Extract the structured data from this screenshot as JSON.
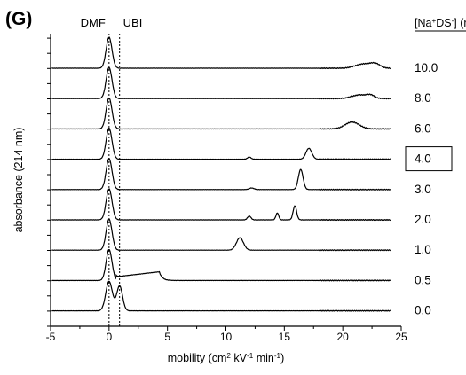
{
  "panel_label": "(G)",
  "chart_data": {
    "type": "line",
    "title": "",
    "xlabel": "mobility (cm² kV⁻¹ min⁻¹)",
    "xlabel_parts": [
      "mobility (cm",
      "2",
      " kV",
      "-1",
      " min",
      "-1",
      ")"
    ],
    "ylabel": "absorbance (214 nm)",
    "xlim": [
      -5,
      25
    ],
    "xticks": [
      -5,
      0,
      5,
      10,
      15,
      20,
      25
    ],
    "grid": false,
    "reference_lines": [
      {
        "label": "DMF",
        "x": 0.0
      },
      {
        "label": "UBI",
        "x": 0.9
      }
    ],
    "legend_title": "[Na⁺DS⁻] (mM)",
    "legend_title_parts": [
      "[Na",
      "+",
      "DS",
      "-",
      "] (mM)"
    ],
    "highlighted_series": "4.0",
    "series": [
      {
        "name": "10.0",
        "peaks": [
          [
            0,
            1.0,
            0.25
          ],
          [
            21.8,
            0.14,
            0.7
          ],
          [
            22.8,
            0.12,
            0.4
          ]
        ]
      },
      {
        "name": "8.0",
        "peaks": [
          [
            0,
            1.0,
            0.25
          ],
          [
            21.5,
            0.12,
            0.7
          ],
          [
            22.4,
            0.08,
            0.3
          ]
        ]
      },
      {
        "name": "6.0",
        "peaks": [
          [
            0,
            1.0,
            0.25
          ],
          [
            20.8,
            0.22,
            0.6
          ]
        ]
      },
      {
        "name": "4.0",
        "peaks": [
          [
            0,
            1.0,
            0.25
          ],
          [
            12.0,
            0.07,
            0.15
          ],
          [
            17.1,
            0.35,
            0.25
          ]
        ]
      },
      {
        "name": "3.0",
        "peaks": [
          [
            0,
            1.0,
            0.25
          ],
          [
            12.2,
            0.05,
            0.2
          ],
          [
            16.4,
            0.65,
            0.2
          ]
        ]
      },
      {
        "name": "2.0",
        "peaks": [
          [
            0,
            1.0,
            0.25
          ],
          [
            12.0,
            0.12,
            0.15
          ],
          [
            14.4,
            0.22,
            0.12
          ],
          [
            15.9,
            0.45,
            0.15
          ]
        ]
      },
      {
        "name": "1.0",
        "peaks": [
          [
            0,
            1.0,
            0.25
          ],
          [
            11.2,
            0.4,
            0.3
          ]
        ]
      },
      {
        "name": "0.5",
        "peaks": [
          [
            0,
            1.0,
            0.25
          ]
        ],
        "plateau": {
          "from": 0.6,
          "to": 4.3,
          "start": 0.12,
          "end": 0.28
        }
      },
      {
        "name": "0.0",
        "peaks": [
          [
            0,
            0.95,
            0.28
          ],
          [
            0.9,
            0.8,
            0.25
          ]
        ]
      }
    ]
  }
}
